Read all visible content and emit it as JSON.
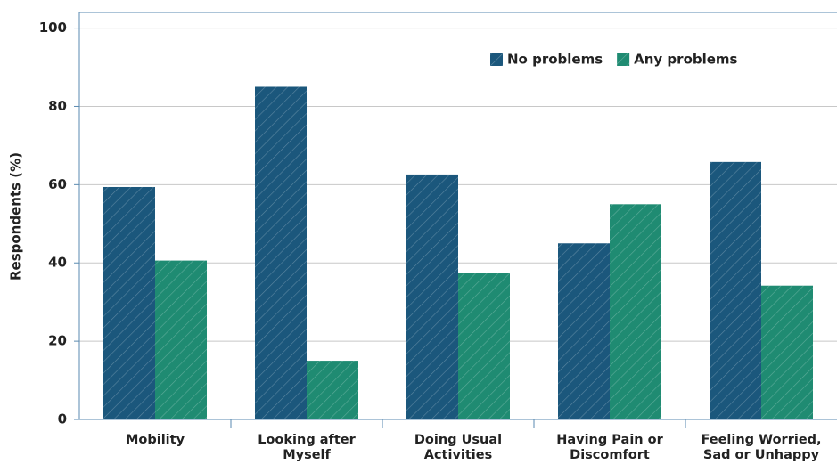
{
  "chart_data": {
    "type": "bar",
    "y_label": "Respondents (%)",
    "categories": [
      "Mobility",
      "Looking after Myself",
      "Doing Usual Activities",
      "Having Pain or Discomfort",
      "Feeling Worried, Sad or Unhappy"
    ],
    "series": [
      {
        "name": "No problems",
        "color": "#1b577c",
        "values": [
          59.4,
          85,
          62.6,
          45,
          65.8
        ]
      },
      {
        "name": "Any problems",
        "color": "#1f8b72",
        "values": [
          40.6,
          15,
          37.4,
          55,
          34.2
        ]
      }
    ],
    "ylim": [
      0,
      104
    ],
    "yticks": [
      0,
      20,
      40,
      60,
      80,
      100
    ],
    "grid": true,
    "legend": "top-right"
  }
}
